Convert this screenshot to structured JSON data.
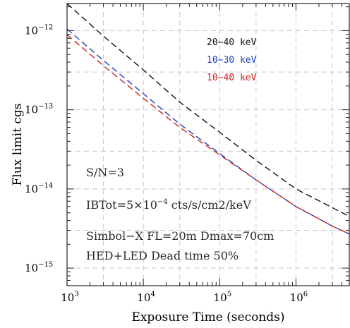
{
  "chart_data": {
    "type": "line",
    "title": "",
    "xlabel": "Exposure Time (seconds)",
    "ylabel": "Flux limit cgs",
    "xscale": "log",
    "yscale": "log",
    "xlim": [
      1000,
      5000000
    ],
    "ylim": [
      6e-16,
      2.2e-12
    ],
    "grid": true,
    "legend_position": "top-right",
    "x_ticks": [
      {
        "value": 1000,
        "base": "10",
        "exp": "3"
      },
      {
        "value": 10000,
        "base": "10",
        "exp": "4"
      },
      {
        "value": 100000,
        "base": "10",
        "exp": "5"
      },
      {
        "value": 1000000,
        "base": "10",
        "exp": "6"
      }
    ],
    "y_ticks": [
      {
        "value": 1e-12,
        "base": "10",
        "exp": "−12"
      },
      {
        "value": 1e-13,
        "base": "10",
        "exp": "−13"
      },
      {
        "value": 1e-14,
        "base": "10",
        "exp": "−14"
      },
      {
        "value": 1e-15,
        "base": "10",
        "exp": "−15"
      }
    ],
    "series": [
      {
        "name": "20−40 keV",
        "color": "#111111",
        "points": [
          [
            1000,
            2.2e-12
          ],
          [
            3000,
            8.5e-13
          ],
          [
            10000,
            3.2e-13
          ],
          [
            30000,
            1.25e-13
          ],
          [
            100000,
            5.2e-14
          ],
          [
            300000,
            2.3e-14
          ],
          [
            1000000,
            1e-14
          ],
          [
            3000000,
            5.8e-15
          ],
          [
            5000000,
            4.5e-15
          ]
        ]
      },
      {
        "name": "10−30 keV",
        "color": "#1f3fbf",
        "points": [
          [
            1000,
            1.05e-12
          ],
          [
            3000,
            4.2e-13
          ],
          [
            10000,
            1.6e-13
          ],
          [
            30000,
            6.6e-14
          ],
          [
            100000,
            2.8e-14
          ],
          [
            300000,
            1.3e-14
          ],
          [
            1000000,
            6e-15
          ],
          [
            3000000,
            3.4e-15
          ],
          [
            5000000,
            2.7e-15
          ]
        ]
      },
      {
        "name": "10−40 keV",
        "color": "#cc2222",
        "points": [
          [
            1000,
            8.9e-13
          ],
          [
            3000,
            3.6e-13
          ],
          [
            10000,
            1.4e-13
          ],
          [
            30000,
            6e-14
          ],
          [
            100000,
            2.7e-14
          ],
          [
            300000,
            1.3e-14
          ],
          [
            1000000,
            6e-15
          ],
          [
            3000000,
            3.4e-15
          ],
          [
            5000000,
            2.7e-15
          ]
        ]
      }
    ],
    "annotations": [
      {
        "id": "sn",
        "text": "S/N=3"
      },
      {
        "id": "ibtot",
        "prefix": "IBTot=5×10",
        "sup": "−4",
        "suffix": " cts/s/cm2/keV"
      },
      {
        "id": "simbol",
        "text": "Simbol−X FL=20m Dmax=70cm"
      },
      {
        "id": "hed",
        "text": "HED+LED Dead time 50%"
      }
    ]
  }
}
